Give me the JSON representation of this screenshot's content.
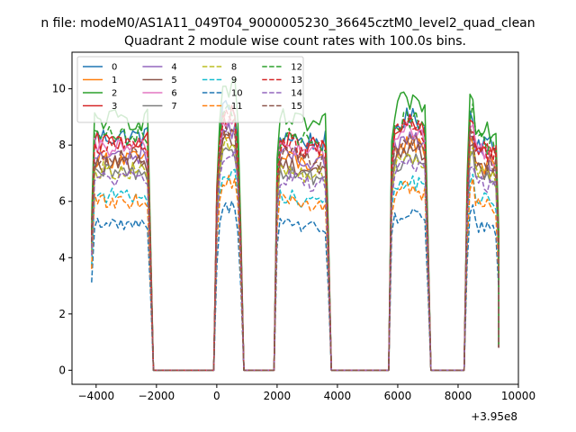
{
  "chart_data": {
    "type": "line",
    "suptitle": "n file: modeM0/AS1A11_049T04_9000005230_36645cztM0_level2_quad_clean",
    "title": "Quadrant 2 module wise count rates with 100.0s bins.",
    "xlabel": "",
    "ylabel": "",
    "x_offset_label": "+3.95e8",
    "xlim": [
      -4800,
      10000
    ],
    "ylim": [
      -0.5,
      11.3
    ],
    "xticks": [
      -4000,
      -2000,
      0,
      2000,
      4000,
      6000,
      8000,
      10000
    ],
    "yticks": [
      0,
      2,
      4,
      6,
      8,
      10
    ],
    "grid": false,
    "legend_position": "top-left",
    "legend_columns": 4,
    "x_note": "x values are offsets from 3.95e8 as printed on the axis",
    "segments": [
      {
        "start": -4150,
        "end": -2200
      },
      {
        "start": 0,
        "end": 800
      },
      {
        "start": 2000,
        "end": 3700
      },
      {
        "start": 5800,
        "end": 7000
      },
      {
        "start": 8300,
        "end": 9350
      }
    ],
    "gaps": [
      [
        -2100,
        -100
      ],
      [
        900,
        1900
      ],
      [
        3800,
        5700
      ],
      [
        7100,
        8200
      ]
    ],
    "series": [
      {
        "name": "0",
        "color": "#1f77b4",
        "dash": "solid",
        "level": 8.3
      },
      {
        "name": "1",
        "color": "#ff7f0e",
        "dash": "solid",
        "level": 7.5
      },
      {
        "name": "2",
        "color": "#2ca02c",
        "dash": "solid",
        "level": 8.9
      },
      {
        "name": "3",
        "color": "#d62728",
        "dash": "solid",
        "level": 8.1
      },
      {
        "name": "4",
        "color": "#9467bd",
        "dash": "solid",
        "level": 7.6
      },
      {
        "name": "5",
        "color": "#8c564b",
        "dash": "solid",
        "level": 7.3
      },
      {
        "name": "6",
        "color": "#e377c2",
        "dash": "solid",
        "level": 7.9
      },
      {
        "name": "7",
        "color": "#7f7f7f",
        "dash": "solid",
        "level": 7.0
      },
      {
        "name": "8",
        "color": "#bcbd22",
        "dash": "dashed",
        "level": 7.1
      },
      {
        "name": "9",
        "color": "#17becf",
        "dash": "dashed",
        "level": 6.2
      },
      {
        "name": "10",
        "color": "#1f77b4",
        "dash": "dashed",
        "level": 5.2
      },
      {
        "name": "11",
        "color": "#ff7f0e",
        "dash": "dashed",
        "level": 6.0
      },
      {
        "name": "12",
        "color": "#2ca02c",
        "dash": "dashed",
        "level": 8.3
      },
      {
        "name": "13",
        "color": "#d62728",
        "dash": "dashed",
        "level": 8.0
      },
      {
        "name": "14",
        "color": "#9467bd",
        "dash": "dashed",
        "level": 6.8
      },
      {
        "name": "15",
        "color": "#8c564b",
        "dash": "dashed",
        "level": 7.6
      }
    ]
  }
}
